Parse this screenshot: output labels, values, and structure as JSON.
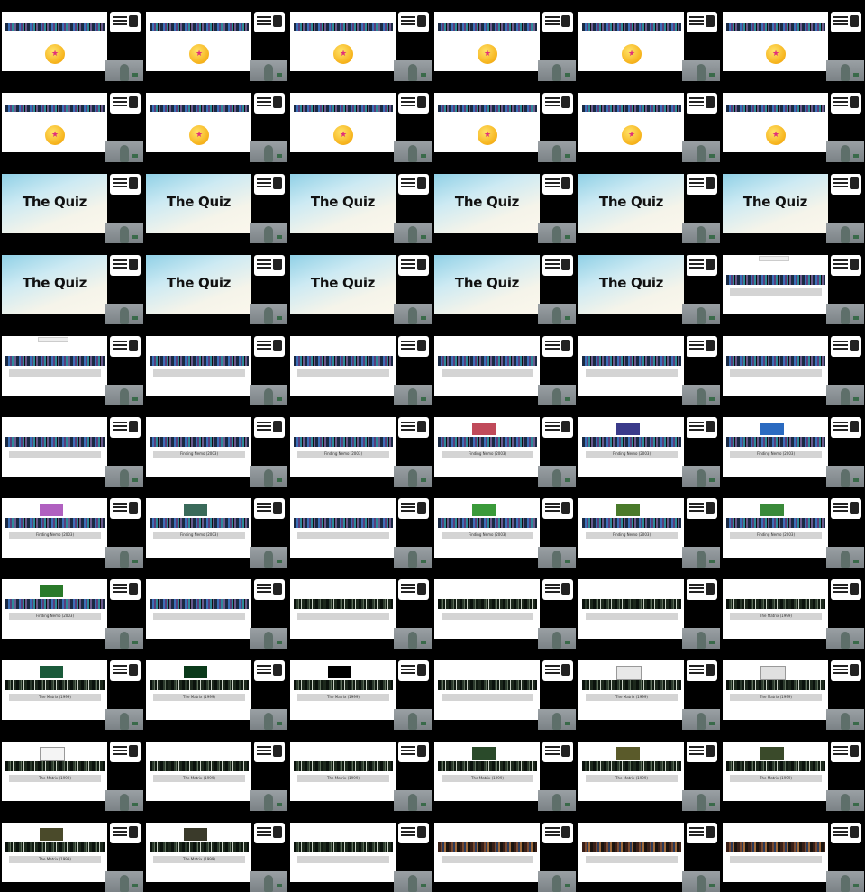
{
  "quiz_title": "The Quiz",
  "emoji_glyph": "★",
  "movie_nemo": "Finding Nemo (2003)",
  "movie_matrix": "The Matrix (1999)",
  "colors": {
    "background": "#000000",
    "slide": "#ffffff",
    "bar": "#d4d4d4"
  },
  "cells": [
    {
      "k": "emoji"
    },
    {
      "k": "emoji"
    },
    {
      "k": "emoji"
    },
    {
      "k": "emoji"
    },
    {
      "k": "emoji"
    },
    {
      "k": "emoji"
    },
    {
      "k": "emoji"
    },
    {
      "k": "emoji"
    },
    {
      "k": "emoji"
    },
    {
      "k": "emoji"
    },
    {
      "k": "emoji"
    },
    {
      "k": "emoji"
    },
    {
      "k": "quiz"
    },
    {
      "k": "quiz"
    },
    {
      "k": "quiz"
    },
    {
      "k": "quiz"
    },
    {
      "k": "quiz"
    },
    {
      "k": "quiz"
    },
    {
      "k": "quiz"
    },
    {
      "k": "quiz"
    },
    {
      "k": "quiz"
    },
    {
      "k": "quiz"
    },
    {
      "k": "quiz"
    },
    {
      "k": "nemo",
      "dash": true
    },
    {
      "k": "nemo",
      "dash": true
    },
    {
      "k": "nemo"
    },
    {
      "k": "nemo"
    },
    {
      "k": "nemo"
    },
    {
      "k": "nemo"
    },
    {
      "k": "nemo"
    },
    {
      "k": "nemo"
    },
    {
      "k": "nemo",
      "label": "movie_nemo"
    },
    {
      "k": "nemo",
      "label": "movie_nemo"
    },
    {
      "k": "nemo",
      "label": "movie_nemo",
      "thumb": "#c04a5a"
    },
    {
      "k": "nemo",
      "label": "movie_nemo",
      "thumb": "#3a3a8a"
    },
    {
      "k": "nemo",
      "label": "movie_nemo",
      "thumb": "#2a6ac0"
    },
    {
      "k": "nemo",
      "label": "movie_nemo",
      "thumb": "#b060c0"
    },
    {
      "k": "nemo",
      "label": "movie_nemo",
      "thumb": "#3a6a5a"
    },
    {
      "k": "nemo"
    },
    {
      "k": "nemo",
      "label": "movie_nemo",
      "thumb": "#3a9a3a"
    },
    {
      "k": "nemo",
      "label": "movie_nemo",
      "thumb": "#4a7a2a"
    },
    {
      "k": "nemo",
      "label": "movie_nemo",
      "thumb": "#3a8a3a"
    },
    {
      "k": "nemo",
      "label": "movie_nemo",
      "thumb": "#2a7a2a"
    },
    {
      "k": "nemo"
    },
    {
      "k": "matrix"
    },
    {
      "k": "matrix"
    },
    {
      "k": "matrix"
    },
    {
      "k": "matrix",
      "label": "movie_matrix"
    },
    {
      "k": "matrix",
      "label": "movie_matrix",
      "thumb": "#1a5a3a"
    },
    {
      "k": "matrix",
      "label": "movie_matrix",
      "thumb": "#0a3a1a"
    },
    {
      "k": "matrix",
      "label": "movie_matrix",
      "thumb": "#000000"
    },
    {
      "k": "matrix"
    },
    {
      "k": "matrix",
      "label": "movie_matrix",
      "thumb": "#e8e8e8"
    },
    {
      "k": "matrix",
      "label": "movie_matrix",
      "thumb": "#e0e0e0"
    },
    {
      "k": "matrix",
      "label": "movie_matrix",
      "thumb": "#f4f4f4"
    },
    {
      "k": "matrix",
      "label": "movie_matrix"
    },
    {
      "k": "matrix",
      "label": "movie_matrix"
    },
    {
      "k": "matrix",
      "label": "movie_matrix",
      "thumb": "#2a4a2a"
    },
    {
      "k": "matrix",
      "label": "movie_matrix",
      "thumb": "#5a5a2a"
    },
    {
      "k": "matrix",
      "label": "movie_matrix",
      "thumb": "#3a4a2a"
    },
    {
      "k": "matrix",
      "label": "movie_matrix",
      "thumb": "#4a4a2a"
    },
    {
      "k": "matrix",
      "label": "movie_matrix",
      "thumb": "#3a3a2a"
    },
    {
      "k": "matrix"
    },
    {
      "k": "warm"
    },
    {
      "k": "warm"
    },
    {
      "k": "warm"
    }
  ]
}
